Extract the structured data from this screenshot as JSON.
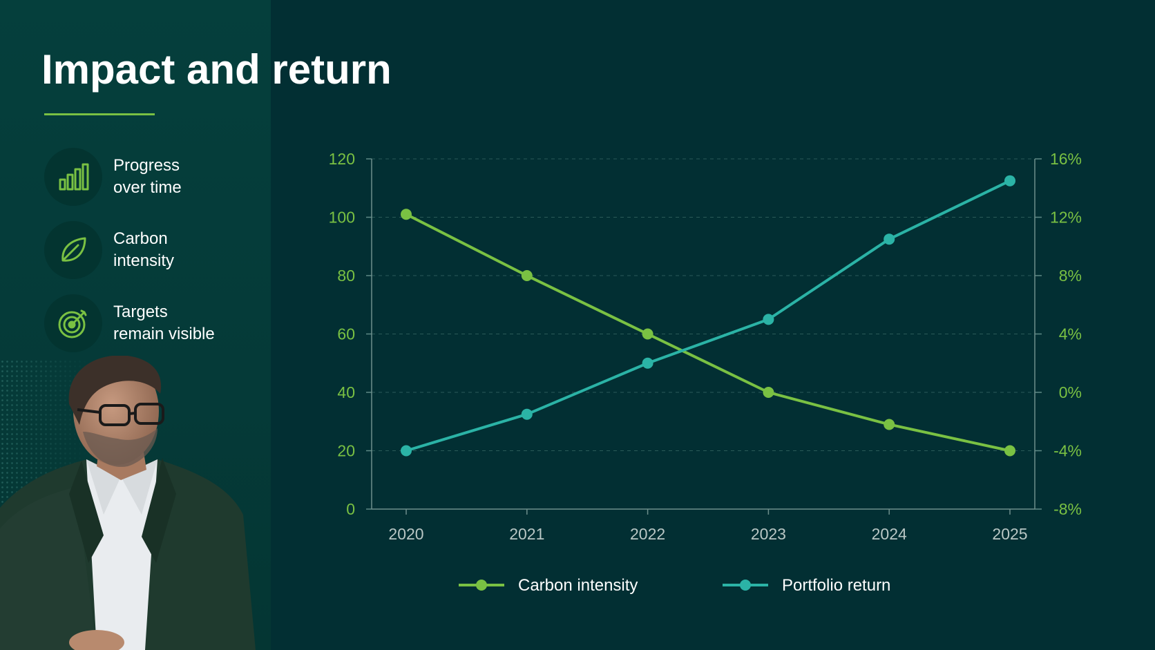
{
  "slide": {
    "title": "Impact and return"
  },
  "features": [
    {
      "icon": "bar-chart-icon",
      "line1": "Progress",
      "line2": "over time"
    },
    {
      "icon": "leaf-icon",
      "line1": "Carbon",
      "line2": "intensity"
    },
    {
      "icon": "target-icon",
      "line1": "Targets",
      "line2": "remain visible"
    }
  ],
  "colors": {
    "background": "#022f33",
    "panel": "#053f3c",
    "accent_green": "#7ac143",
    "teal": "#2bb3a6",
    "grid": "#2b5a58"
  },
  "chart_data": {
    "type": "line",
    "title": "",
    "x": [
      "2020",
      "2021",
      "2022",
      "2023",
      "2024",
      "2025"
    ],
    "series": [
      {
        "name": "Carbon intensity",
        "axis": "left",
        "color": "#7ac143",
        "values": [
          101,
          80,
          60,
          40,
          29,
          20
        ]
      },
      {
        "name": "Portfolio return",
        "axis": "right",
        "color": "#2bb3a6",
        "values": [
          -4,
          -1.5,
          2,
          5,
          10.5,
          14.5
        ]
      }
    ],
    "y_left": {
      "lim": [
        0,
        120
      ],
      "ticks": [
        "0",
        "20",
        "40",
        "60",
        "80",
        "100",
        "120"
      ]
    },
    "y_right": {
      "lim": [
        -8,
        16
      ],
      "ticks": [
        "-8%",
        "-4%",
        "0%",
        "4%",
        "8%",
        "12%",
        "16%"
      ]
    },
    "grid": "horizontal-dashed",
    "legend": "bottom"
  }
}
